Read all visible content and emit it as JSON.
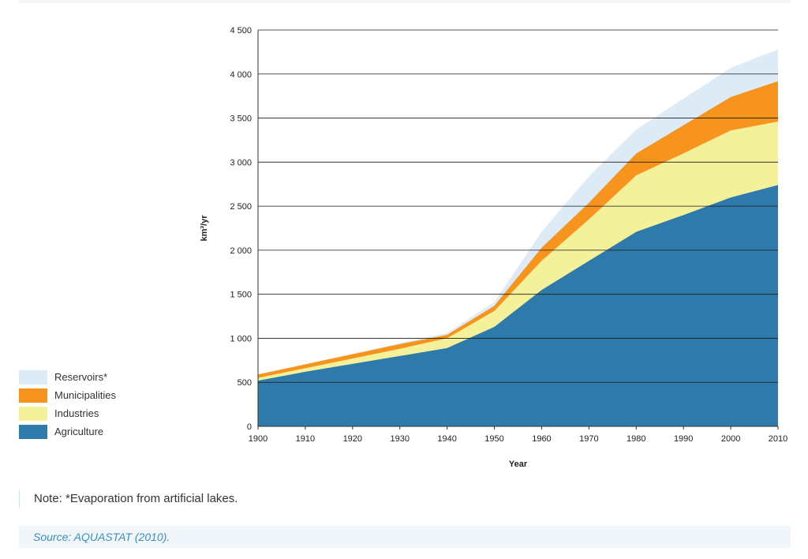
{
  "chart_data": {
    "type": "area",
    "stacked": true,
    "xlabel": "Year",
    "ylabel": "km³/yr",
    "xlim": [
      1900,
      2010
    ],
    "ylim": [
      0,
      4500
    ],
    "x_ticks": [
      1900,
      1910,
      1920,
      1930,
      1940,
      1950,
      1960,
      1970,
      1980,
      1990,
      2000,
      2010
    ],
    "x_tick_labels": [
      "1900",
      "1910",
      "1920",
      "1930",
      "1940",
      "1950",
      "1960",
      "1970",
      "1980",
      "1990",
      "2000",
      "2010"
    ],
    "y_ticks": [
      0,
      500,
      1000,
      1500,
      2000,
      2500,
      3000,
      3500,
      4000,
      4500
    ],
    "y_tick_labels": [
      "0",
      "500",
      "1 000",
      "1 500",
      "2 000",
      "2 500",
      "3 000",
      "3 500",
      "4 000",
      "4 500"
    ],
    "grid": "horizontal",
    "legend_position": "bottom-left",
    "x": [
      1900,
      1910,
      1920,
      1930,
      1940,
      1950,
      1960,
      1970,
      1980,
      1990,
      2000,
      2010
    ],
    "series": [
      {
        "name": "Agriculture",
        "color": "#2e7bab",
        "values": [
          520,
          620,
          710,
          800,
          890,
          1130,
          1550,
          1880,
          2210,
          2400,
          2600,
          2740
        ]
      },
      {
        "name": "Industries",
        "color": "#f4f19b",
        "values": [
          30,
          40,
          60,
          80,
          110,
          180,
          330,
          470,
          640,
          700,
          760,
          720
        ]
      },
      {
        "name": "Municipalities",
        "color": "#f7941d",
        "values": [
          40,
          45,
          50,
          55,
          40,
          60,
          150,
          190,
          250,
          320,
          380,
          460
        ]
      },
      {
        "name": "Reservoirs*",
        "color": "#dcebf6",
        "values": [
          0,
          0,
          0,
          10,
          20,
          40,
          180,
          300,
          270,
          300,
          330,
          360
        ]
      }
    ]
  },
  "legend": {
    "items": [
      {
        "label": "Reservoirs*",
        "color": "#dcebf6"
      },
      {
        "label": "Municipalities",
        "color": "#f7941d"
      },
      {
        "label": "Industries",
        "color": "#f4f19b"
      },
      {
        "label": "Agriculture",
        "color": "#2e7bab"
      }
    ]
  },
  "note": "Note: *Evaporation from artificial lakes.",
  "source": "Source: AQUASTAT (2010)."
}
